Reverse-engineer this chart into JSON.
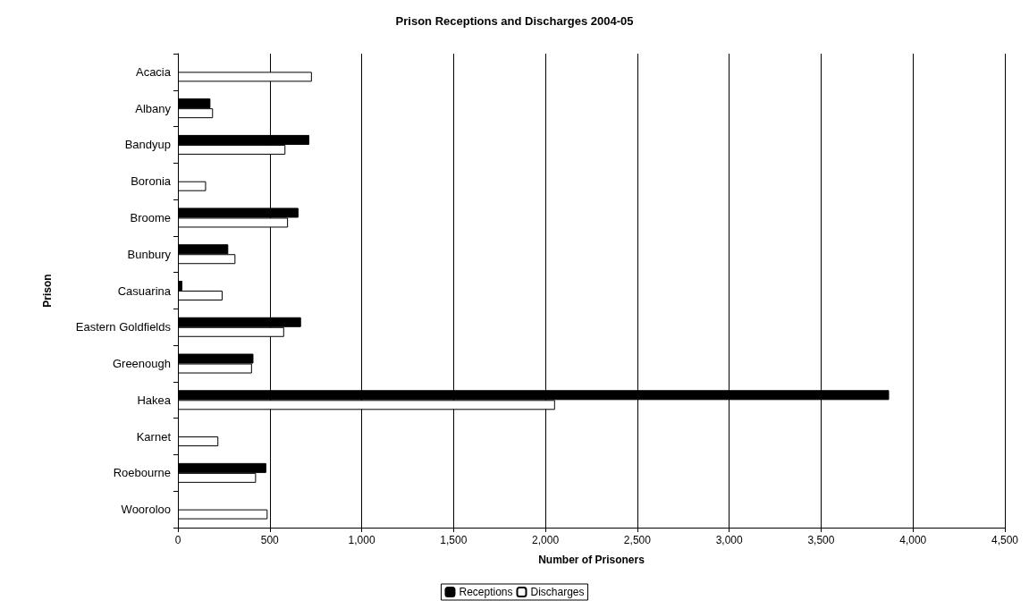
{
  "chart_data": {
    "type": "bar",
    "orientation": "horizontal",
    "title": "Prison Receptions and Discharges 2004-05",
    "xlabel": "Number of Prisoners",
    "ylabel": "Prison",
    "categories": [
      "Acacia",
      "Albany",
      "Bandyup",
      "Boronia",
      "Broome",
      "Bunbury",
      "Casuarina",
      "Eastern Goldfields",
      "Greenough",
      "Hakea",
      "Karnet",
      "Roebourne",
      "Wooroloo"
    ],
    "series": [
      {
        "name": "Receptions",
        "color": "#000000",
        "values": [
          null,
          177,
          715,
          null,
          656,
          274,
          24,
          670,
          411,
          3870,
          null,
          481,
          null
        ]
      },
      {
        "name": "Discharges",
        "color": "#ffffff",
        "values": [
          729,
          191,
          585,
          153,
          599,
          313,
          243,
          578,
          403,
          2052,
          220,
          425,
          488
        ]
      }
    ],
    "xlim": [
      0,
      4500
    ],
    "xticks": [
      0,
      {
        "value": 500,
        "label": "500"
      },
      {
        "value": 1000,
        "label": "1,000"
      },
      {
        "value": 1500,
        "label": "1,500"
      },
      {
        "value": 2000,
        "label": "2,000"
      },
      {
        "value": 2500,
        "label": "2,500"
      },
      {
        "value": 3000,
        "label": "3,000"
      },
      {
        "value": 3500,
        "label": "3,500"
      },
      {
        "value": 4000,
        "label": "4,000"
      },
      {
        "value": 4500,
        "label": "4,500"
      }
    ],
    "grid": "x",
    "legend": "bottom"
  }
}
